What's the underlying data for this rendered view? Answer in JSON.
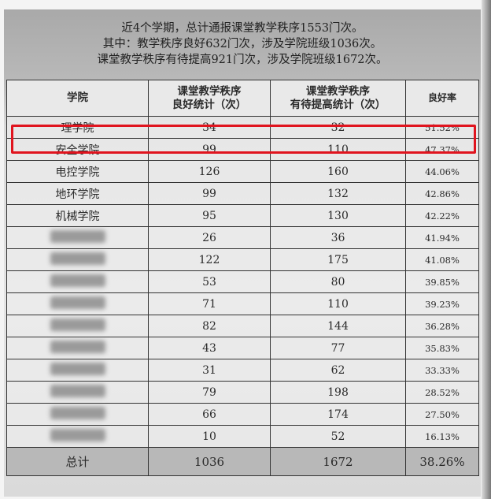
{
  "intro": [
    "近4个学期，总计通报课堂教学秩序1553门次。",
    "其中：教学秩序良好632门次，涉及学院班级1036次。",
    "课堂教学秩序有待提高921门次，涉及学院班级1672次。"
  ],
  "table": {
    "headers": {
      "college": "学院",
      "good_line1": "课堂教学秩序",
      "good_line2": "良好统计（次）",
      "improve_line1": "课堂教学秩序",
      "improve_line2": "有待提高统计（次）",
      "rate": "良好率"
    },
    "rows": [
      {
        "college": "理学院",
        "good": "34",
        "improve": "32",
        "rate": "51.52%",
        "highlighted": true
      },
      {
        "college": "安全学院",
        "good": "99",
        "improve": "110",
        "rate": "47.37%"
      },
      {
        "college": "电控学院",
        "good": "126",
        "improve": "160",
        "rate": "44.06%"
      },
      {
        "college": "地环学院",
        "good": "99",
        "improve": "132",
        "rate": "42.86%"
      },
      {
        "college": "机械学院",
        "good": "95",
        "improve": "130",
        "rate": "42.22%"
      },
      {
        "college": "",
        "good": "26",
        "improve": "36",
        "rate": "41.94%",
        "blurred": true
      },
      {
        "college": "",
        "good": "122",
        "improve": "175",
        "rate": "41.08%",
        "blurred": true
      },
      {
        "college": "",
        "good": "53",
        "improve": "80",
        "rate": "39.85%",
        "blurred": true
      },
      {
        "college": "",
        "good": "71",
        "improve": "110",
        "rate": "39.23%",
        "blurred": true
      },
      {
        "college": "",
        "good": "82",
        "improve": "144",
        "rate": "36.28%",
        "blurred": true
      },
      {
        "college": "",
        "good": "43",
        "improve": "77",
        "rate": "35.83%",
        "blurred": true
      },
      {
        "college": "",
        "good": "31",
        "improve": "62",
        "rate": "33.33%",
        "blurred": true
      },
      {
        "college": "",
        "good": "79",
        "improve": "198",
        "rate": "28.52%",
        "blurred": true
      },
      {
        "college": "",
        "good": "66",
        "improve": "174",
        "rate": "27.50%",
        "blurred": true
      },
      {
        "college": "",
        "good": "10",
        "improve": "52",
        "rate": "16.13%",
        "blurred": true
      }
    ],
    "total": {
      "label": "总计",
      "good": "1036",
      "improve": "1672",
      "rate": "38.26%"
    }
  },
  "colors": {
    "highlight_border": "#e0141e"
  }
}
